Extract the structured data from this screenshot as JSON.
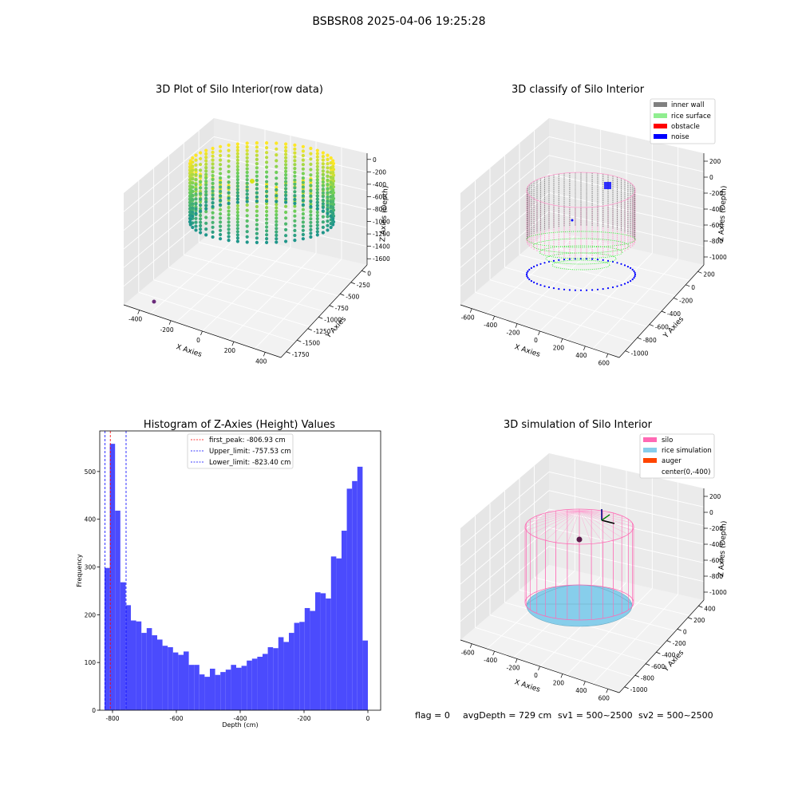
{
  "suptitle": "BSBSR08 2025-04-06 19:25:28",
  "footer": {
    "flag": "flag = 0",
    "avg": "avgDepth = 729 cm",
    "sv1": "sv1 = 500~2500",
    "sv2": "sv2 = 500~2500"
  },
  "colors": {
    "hist": "#4b4bfd",
    "inner_wall": "#808080",
    "rice_surface": "#90ee90",
    "obstacle": "#ff0000",
    "noise": "#0000ff",
    "silo": "#ff69b4",
    "rice_sim": "#87ceeb",
    "auger": "#ff4500"
  },
  "chart_data": [
    {
      "type": "scatter",
      "title": "3D Plot of Silo Interior(row data)",
      "projection": "3d",
      "xlabel": "X Axies",
      "ylabel": "Y Axies",
      "zlabel": "Z Axies (Depth)",
      "x_ticks": [
        "-400",
        "-200",
        "0",
        "200",
        "400"
      ],
      "y_ticks": [
        "0",
        "-250",
        "-500",
        "-750",
        "-1000",
        "-1250",
        "-1500",
        "-1750"
      ],
      "z_ticks": [
        "0",
        "-200",
        "-400",
        "-600",
        "-800",
        "-1000",
        "-1200",
        "-1400",
        "-1600"
      ],
      "colormap": "viridis"
    },
    {
      "type": "scatter",
      "title": "3D classify of Silo Interior",
      "projection": "3d",
      "xlabel": "X Axies",
      "ylabel": "Y Axies",
      "zlabel": "Z Axies (Depth)",
      "x_ticks": [
        "-600",
        "-400",
        "-200",
        "0",
        "200",
        "400",
        "600"
      ],
      "y_ticks": [
        "200",
        "0",
        "-200",
        "-400",
        "-600",
        "-800",
        "-1000"
      ],
      "z_ticks": [
        "200",
        "0",
        "-200",
        "-400",
        "-600",
        "-800",
        "-1000"
      ],
      "legend": [
        "inner wall",
        "rice surface",
        "obstacle",
        "noise"
      ],
      "legend_position": "top-right"
    },
    {
      "type": "bar",
      "title": "Histogram of Z-Axies (Height) Values",
      "xlabel": "Depth (cm)",
      "ylabel": "Frequency",
      "xlim": [
        -840,
        40
      ],
      "ylim": [
        0,
        585
      ],
      "x_ticks": [
        -800,
        -600,
        -400,
        -200,
        0
      ],
      "y_ticks": [
        0,
        100,
        200,
        300,
        400,
        500
      ],
      "bin_start": -825,
      "bin_width": 16.5,
      "values": [
        298,
        558,
        418,
        268,
        220,
        188,
        186,
        162,
        172,
        157,
        148,
        135,
        132,
        121,
        116,
        123,
        95,
        95,
        75,
        70,
        87,
        74,
        80,
        85,
        95,
        89,
        93,
        104,
        108,
        112,
        118,
        132,
        130,
        153,
        143,
        162,
        183,
        185,
        214,
        208,
        247,
        245,
        234,
        322,
        318,
        376,
        464,
        480,
        510,
        146
      ],
      "lines": [
        {
          "label": "first_peak: -806.93 cm",
          "value": -806.93,
          "color": "#ff0000"
        },
        {
          "label": "Upper_limit: -757.53 cm",
          "value": -757.53,
          "color": "#0000ff"
        },
        {
          "label": "Lower_limit: -823.40 cm",
          "value": -823.4,
          "color": "#0000ff"
        }
      ],
      "legend_position": "top-center"
    },
    {
      "type": "scatter",
      "title": "3D simulation of Silo Interior",
      "projection": "3d",
      "xlabel": "X Axies",
      "ylabel": "Y Axies",
      "zlabel": "Z Axies (Depth)",
      "x_ticks": [
        "-600",
        "-400",
        "-200",
        "0",
        "200",
        "400",
        "600"
      ],
      "y_ticks": [
        "400",
        "200",
        "0",
        "-200",
        "-400",
        "-600",
        "-800",
        "-1000"
      ],
      "z_ticks": [
        "200",
        "0",
        "-200",
        "-400",
        "-600",
        "-800",
        "-1000"
      ],
      "legend": [
        "silo",
        "rice simulation",
        "auger",
        "center(0,-400)"
      ],
      "legend_position": "top-right"
    }
  ]
}
